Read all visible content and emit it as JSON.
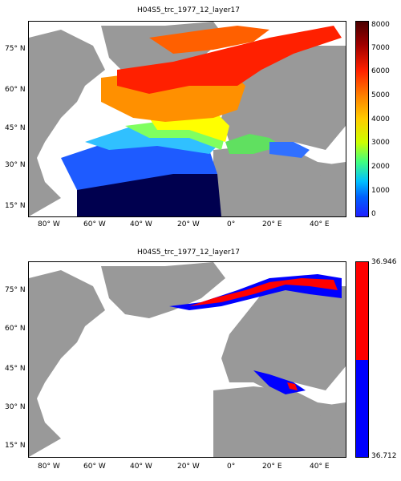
{
  "maps": [
    {
      "title": "H04S5_trc_1977_12_layer17",
      "colorbar": {
        "ticks": [
          "8000",
          "7000",
          "6000",
          "5000",
          "4000",
          "3000",
          "2000",
          "1000",
          "0"
        ],
        "colors": [
          "#7f0000",
          "#ff0000",
          "#ffaa00",
          "#ffff00",
          "#80ff80",
          "#00ffff",
          "#0080ff",
          "#0000ff",
          "#00008f"
        ]
      }
    },
    {
      "title": "H04S5_trc_1977_12_layer17",
      "colorbar": {
        "ticks": [
          "36.946",
          "36.712"
        ],
        "colors": [
          "#ff0000",
          "#0000ff"
        ]
      }
    }
  ],
  "axes": {
    "lat_ticks": [
      "75° N",
      "60° N",
      "45° N",
      "30° N",
      "15° N"
    ],
    "lon_ticks": [
      "80° W",
      "60° W",
      "40° W",
      "20° W",
      "0°",
      "20° E",
      "40° E"
    ]
  },
  "colors": {
    "land": "#999999",
    "ocean_nodata": "#ffffff"
  }
}
